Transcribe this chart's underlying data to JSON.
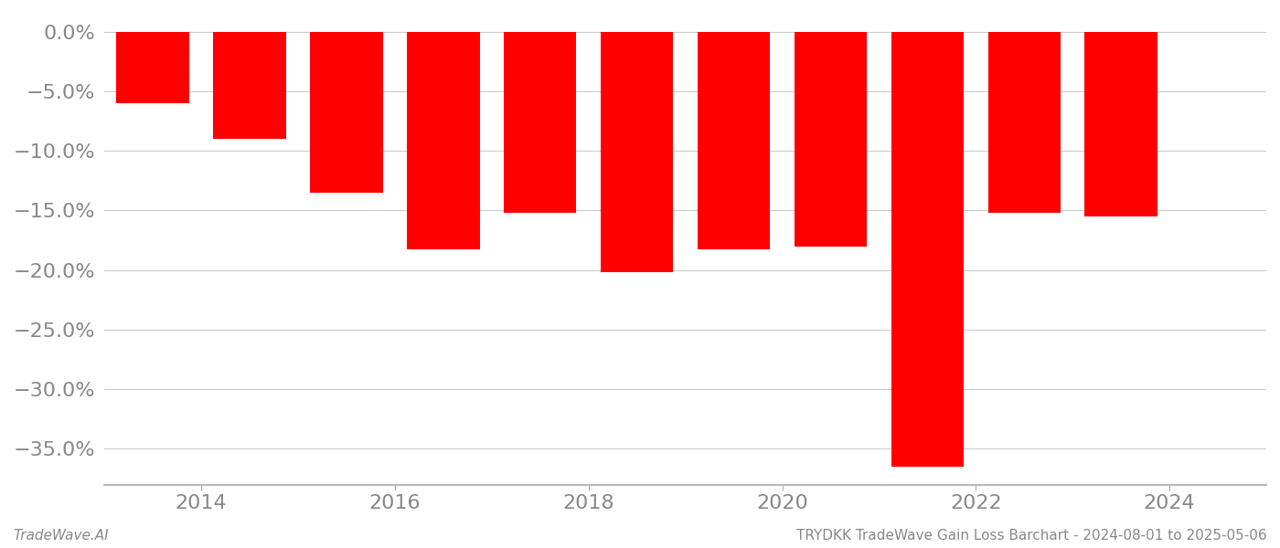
{
  "years": [
    2013.5,
    2014.5,
    2015.5,
    2016.5,
    2017.5,
    2018.5,
    2019.5,
    2020.5,
    2021.5,
    2022.5,
    2023.5
  ],
  "values": [
    -0.06,
    -0.09,
    -0.135,
    -0.183,
    -0.152,
    -0.202,
    -0.183,
    -0.18,
    -0.365,
    -0.152,
    -0.155
  ],
  "bar_color": "#ff0000",
  "ylim": [
    -0.38,
    0.015
  ],
  "yticks": [
    0.0,
    -0.05,
    -0.1,
    -0.15,
    -0.2,
    -0.25,
    -0.3,
    -0.35
  ],
  "xlim": [
    2013.0,
    2025.0
  ],
  "xticks": [
    2014,
    2016,
    2018,
    2020,
    2022,
    2024
  ],
  "footer_left": "TradeWave.AI",
  "footer_right": "TRYDKK TradeWave Gain Loss Barchart - 2024-08-01 to 2025-05-06",
  "background_color": "#ffffff",
  "bar_width": 0.75,
  "grid_color": "#cccccc",
  "tick_label_color": "#888888",
  "footer_color": "#888888",
  "tick_fontsize": 16,
  "footer_fontsize": 11
}
